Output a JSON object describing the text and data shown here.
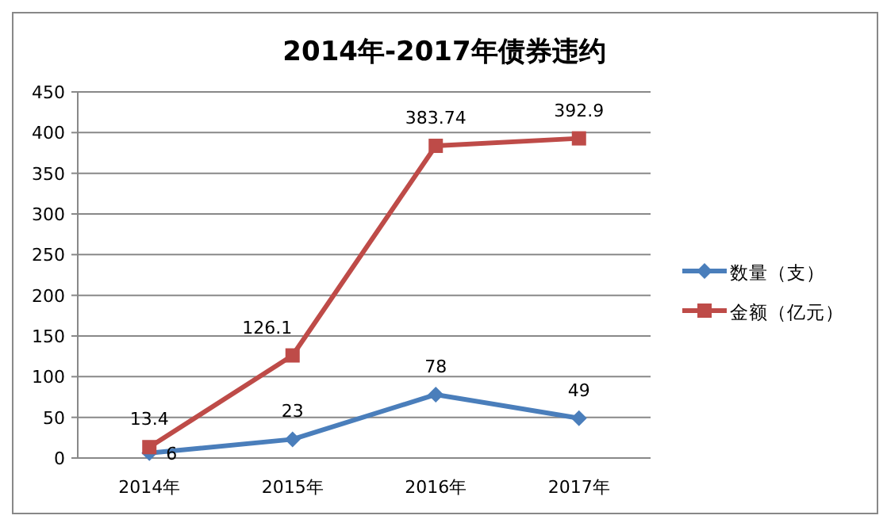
{
  "chart_data": {
    "type": "line",
    "title": "2014年-2017年债券违约",
    "categories": [
      "2014年",
      "2015年",
      "2016年",
      "2017年"
    ],
    "series": [
      {
        "name": "数量（支）",
        "color": "#4a7ebb",
        "marker": "diamond",
        "values": [
          6,
          23,
          78,
          49
        ]
      },
      {
        "name": "金额（亿元）",
        "color": "#be4b48",
        "marker": "square",
        "values": [
          13.4,
          126.1,
          383.74,
          392.9
        ]
      }
    ],
    "ylim": [
      0,
      450
    ],
    "yticks": [
      0,
      50,
      100,
      150,
      200,
      250,
      300,
      350,
      400,
      450
    ],
    "grid": "y",
    "legend": "right",
    "data_labels": true,
    "line_style": "solid"
  }
}
